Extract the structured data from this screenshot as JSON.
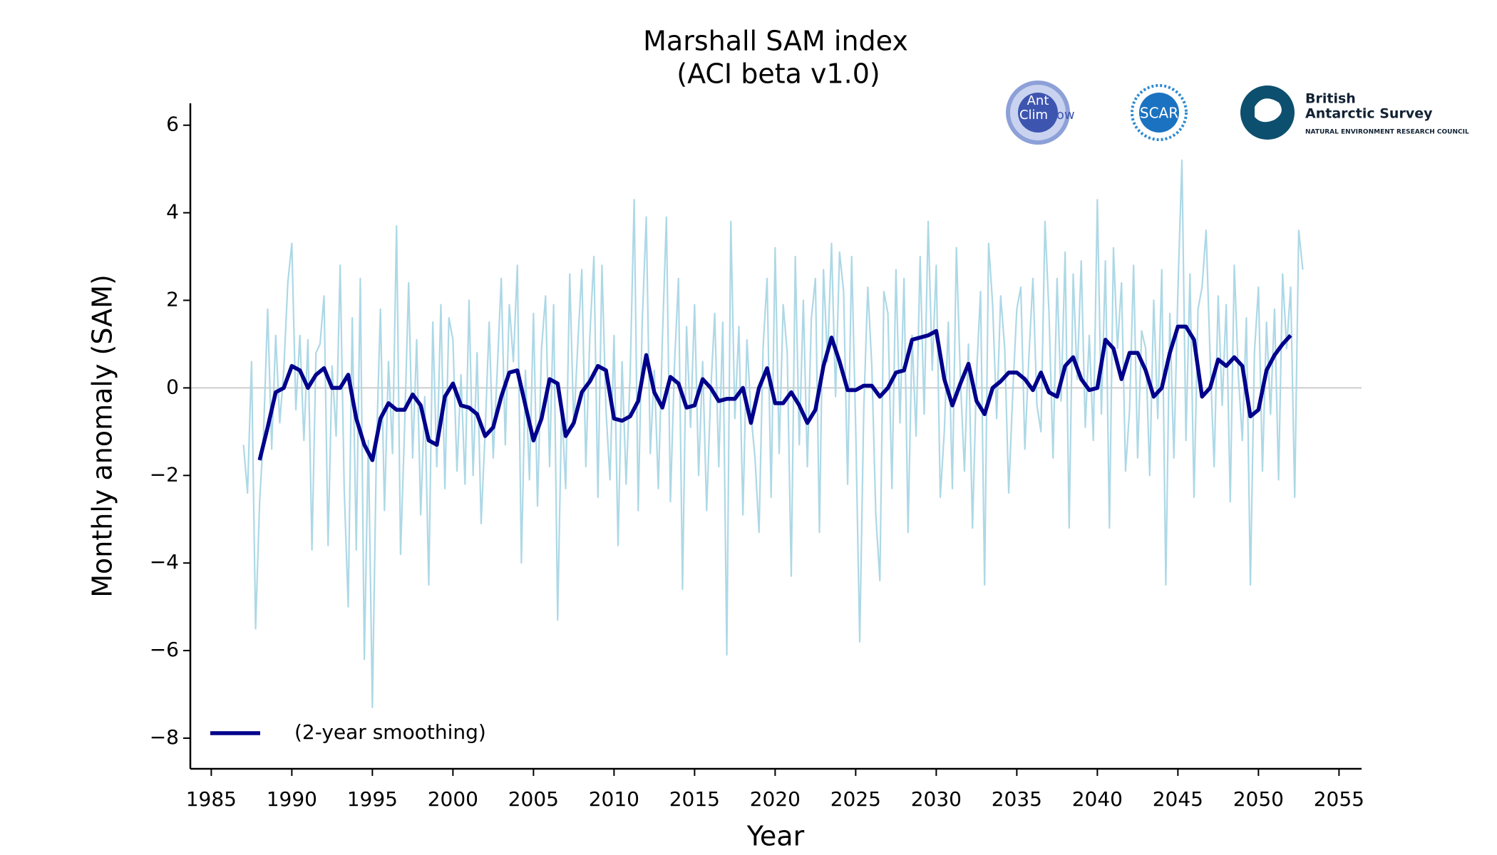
{
  "chart_data": {
    "type": "line",
    "title": "Marshall SAM index",
    "subtitle": "(ACI beta v1.0)",
    "x_label": "Year",
    "y_label": "Monthly anomaly (SAM)",
    "logos": [
      "Ant",
      "Clim",
      "Now",
      "SCAR",
      "British",
      "Antarctic Survey",
      "NATURAL ENVIRONMENT RESEARCH COUNCIL"
    ],
    "xlim": [
      1983.7,
      2056.4
    ],
    "ylim": [
      -8.7,
      6.5
    ],
    "xticks": [
      1985,
      1990,
      1995,
      2000,
      2005,
      2010,
      2015,
      2020,
      2025,
      2030,
      2035,
      2040,
      2045,
      2050,
      2055
    ],
    "yticks": [
      {
        "value": -8,
        "label": "−8"
      },
      {
        "value": -6,
        "label": "−6"
      },
      {
        "value": -4,
        "label": "−4"
      },
      {
        "value": -2,
        "label": "−2"
      },
      0,
      2,
      4,
      6
    ],
    "reference_line": 0,
    "legend": "lower left",
    "series": [
      {
        "color": "#add8e6",
        "x": [
          1987,
          1987.25,
          1987.5,
          1987.75,
          1988,
          1988.25,
          1988.5,
          1988.75,
          1989,
          1989.25,
          1989.5,
          1989.75,
          1990,
          1990.25,
          1990.5,
          1990.75,
          1991,
          1991.25,
          1991.5,
          1991.75,
          1992,
          1992.25,
          1992.5,
          1992.75,
          1993,
          1993.25,
          1993.5,
          1993.75,
          1994,
          1994.25,
          1994.5,
          1994.75,
          1995,
          1995.25,
          1995.5,
          1995.75,
          1996,
          1996.25,
          1996.5,
          1996.75,
          1997,
          1997.25,
          1997.5,
          1997.75,
          1998,
          1998.25,
          1998.5,
          1998.75,
          1999,
          1999.25,
          1999.5,
          1999.75,
          2000,
          2000.25,
          2000.5,
          2000.75,
          2001,
          2001.25,
          2001.5,
          2001.75,
          2002,
          2002.25,
          2002.5,
          2002.75,
          2003,
          2003.25,
          2003.5,
          2003.75,
          2004,
          2004.25,
          2004.5,
          2004.75,
          2005,
          2005.25,
          2005.5,
          2005.75,
          2006,
          2006.25,
          2006.5,
          2006.75,
          2007,
          2007.25,
          2007.5,
          2007.75,
          2008,
          2008.25,
          2008.5,
          2008.75,
          2009,
          2009.25,
          2009.5,
          2009.75,
          2010,
          2010.25,
          2010.5,
          2010.75,
          2011,
          2011.25,
          2011.5,
          2011.75,
          2012,
          2012.25,
          2012.5,
          2012.75,
          2013,
          2013.25,
          2013.5,
          2013.75,
          2014,
          2014.25,
          2014.5,
          2014.75,
          2015,
          2015.25,
          2015.5,
          2015.75,
          2016,
          2016.25,
          2016.5,
          2016.75,
          2017,
          2017.25,
          2017.5,
          2017.75,
          2018,
          2018.25,
          2018.5,
          2018.75,
          2019,
          2019.25,
          2019.5,
          2019.75,
          2020,
          2020.25,
          2020.5,
          2020.75,
          2021,
          2021.25,
          2021.5,
          2021.75,
          2022,
          2022.25,
          2022.5,
          2022.75,
          2023,
          2023.25,
          2023.5,
          2023.75,
          2024,
          2024.25,
          2024.5,
          2024.75,
          2025,
          2025.25,
          2025.5,
          2025.75,
          2026,
          2026.25,
          2026.5,
          2026.75,
          2027,
          2027.25,
          2027.5,
          2027.75,
          2028,
          2028.25,
          2028.5,
          2028.75,
          2029,
          2029.25,
          2029.5,
          2029.75,
          2030,
          2030.25,
          2030.5,
          2030.75,
          2031,
          2031.25,
          2031.5,
          2031.75,
          2032,
          2032.25,
          2032.5,
          2032.75,
          2033,
          2033.25,
          2033.5,
          2033.75,
          2034,
          2034.25,
          2034.5,
          2034.75,
          2035,
          2035.25,
          2035.5,
          2035.75,
          2036,
          2036.25,
          2036.5,
          2036.75,
          2037,
          2037.25,
          2037.5,
          2037.75,
          2038,
          2038.25,
          2038.5,
          2038.75,
          2039,
          2039.25,
          2039.5,
          2039.75,
          2040,
          2040.25,
          2040.5,
          2040.75,
          2041,
          2041.25,
          2041.5,
          2041.75,
          2042,
          2042.25,
          2042.5,
          2042.75,
          2043,
          2043.25,
          2043.5,
          2043.75,
          2044,
          2044.25,
          2044.5,
          2044.75,
          2045,
          2045.25,
          2045.5,
          2045.75,
          2046,
          2046.25,
          2046.5,
          2046.75,
          2047,
          2047.25,
          2047.5,
          2047.75,
          2048,
          2048.25,
          2048.5,
          2048.75,
          2049,
          2049.25,
          2049.5,
          2049.75,
          2050,
          2050.25,
          2050.5,
          2050.75,
          2051,
          2051.25,
          2051.5,
          2051.75,
          2052,
          2052.25,
          2052.5,
          2052.75
        ],
        "values": [
          -1.3,
          -2.4,
          0.6,
          -5.5,
          -2.6,
          -1.0,
          1.8,
          -1.4,
          1.2,
          -0.8,
          0.4,
          2.4,
          3.3,
          -0.5,
          1.2,
          -1.2,
          1.1,
          -3.7,
          0.8,
          1.0,
          2.1,
          -3.6,
          0.5,
          -1.1,
          2.8,
          -2.3,
          -5.0,
          1.6,
          -3.7,
          2.5,
          -6.2,
          -1.2,
          -7.3,
          -1.4,
          1.8,
          -2.8,
          0.6,
          -1.5,
          3.7,
          -3.8,
          -0.9,
          2.4,
          -1.6,
          1.1,
          -2.9,
          -0.2,
          -4.5,
          1.5,
          -1.8,
          1.9,
          -2.3,
          1.6,
          1.1,
          -1.9,
          0.3,
          -2.2,
          2.0,
          -2.0,
          0.8,
          -3.1,
          -1.0,
          1.5,
          -1.6,
          0.4,
          2.5,
          -1.3,
          1.9,
          0.6,
          2.8,
          -4.0,
          0.4,
          -2.1,
          1.7,
          -2.7,
          0.9,
          2.1,
          -1.8,
          1.9,
          -5.3,
          -0.4,
          -2.3,
          2.6,
          -0.9,
          1.0,
          2.7,
          -1.8,
          1.2,
          3.0,
          -2.5,
          2.8,
          -0.5,
          -2.1,
          1.2,
          -3.6,
          0.6,
          -2.2,
          0.3,
          4.3,
          -2.8,
          1.5,
          3.9,
          -1.5,
          0.4,
          -2.3,
          1.1,
          3.9,
          -2.6,
          0.5,
          2.5,
          -4.6,
          1.4,
          -0.9,
          1.9,
          -2.0,
          0.6,
          -2.8,
          -0.1,
          1.7,
          -1.8,
          1.5,
          -6.1,
          3.8,
          -0.7,
          1.4,
          -2.9,
          1.1,
          -0.6,
          -1.6,
          -3.3,
          0.9,
          2.5,
          -2.5,
          3.2,
          -1.5,
          1.9,
          0.8,
          -4.3,
          3.0,
          -1.3,
          2.0,
          -1.8,
          1.6,
          2.5,
          -3.3,
          2.7,
          0.6,
          3.3,
          -0.2,
          3.1,
          2.2,
          -2.2,
          3.0,
          -0.9,
          -5.8,
          -0.5,
          2.3,
          0.5,
          -2.9,
          -4.4,
          2.2,
          1.7,
          -2.3,
          2.7,
          -0.8,
          2.5,
          -3.3,
          1.2,
          -1.1,
          3.0,
          -0.6,
          3.8,
          0.4,
          2.8,
          -2.5,
          -1.0,
          1.5,
          -2.3,
          3.2,
          0.2,
          -1.9,
          1.0,
          -3.2,
          0.3,
          2.2,
          -4.5,
          3.3,
          1.9,
          -0.7,
          2.1,
          0.9,
          -2.4,
          -0.1,
          1.8,
          2.3,
          -1.4,
          0.7,
          2.5,
          -0.4,
          -1.0,
          3.8,
          1.7,
          -1.6,
          2.5,
          -0.3,
          3.1,
          -3.2,
          2.6,
          0.2,
          2.9,
          -0.9,
          1.2,
          -1.2,
          4.3,
          -0.6,
          2.9,
          -3.2,
          3.2,
          0.9,
          2.4,
          -1.9,
          -0.5,
          2.8,
          -1.6,
          1.3,
          0.9,
          -2.0,
          2.0,
          -0.7,
          2.7,
          -4.5,
          1.7,
          -1.6,
          2.2,
          5.2,
          -1.2,
          2.6,
          -2.5,
          1.8,
          2.3,
          3.6,
          0.7,
          -1.8,
          2.1,
          -0.4,
          1.9,
          -2.6,
          2.8,
          0.3,
          -1.2,
          1.6,
          -4.5,
          0.8,
          2.3,
          -1.9,
          1.5,
          -0.6,
          1.8,
          -2.1,
          2.6,
          0.9,
          2.3,
          -2.5,
          3.6,
          2.7
        ]
      },
      {
        "name": "(2-year smoothing)",
        "color": "#00008b",
        "x": [
          1988,
          1988.5,
          1989,
          1989.5,
          1990,
          1990.5,
          1991,
          1991.5,
          1992,
          1992.5,
          1993,
          1993.5,
          1994,
          1994.5,
          1995,
          1995.5,
          1996,
          1996.5,
          1997,
          1997.5,
          1998,
          1998.5,
          1999,
          1999.5,
          2000,
          2000.5,
          2001,
          2001.5,
          2002,
          2002.5,
          2003,
          2003.5,
          2004,
          2004.5,
          2005,
          2005.5,
          2006,
          2006.5,
          2007,
          2007.5,
          2008,
          2008.5,
          2009,
          2009.5,
          2010,
          2010.5,
          2011,
          2011.5,
          2012,
          2012.5,
          2013,
          2013.5,
          2014,
          2014.5,
          2015,
          2015.5,
          2016,
          2016.5,
          2017,
          2017.5,
          2018,
          2018.5,
          2019,
          2019.5,
          2020,
          2020.5,
          2021,
          2021.5,
          2022,
          2022.5,
          2023,
          2023.5,
          2024,
          2024.5,
          2025,
          2025.5,
          2026,
          2026.5,
          2027,
          2027.5,
          2028,
          2028.5,
          2029,
          2029.5,
          2030,
          2030.5,
          2031,
          2031.5,
          2032,
          2032.5,
          2033,
          2033.5,
          2034,
          2034.5,
          2035,
          2035.5,
          2036,
          2036.5,
          2037,
          2037.5,
          2038,
          2038.5,
          2039,
          2039.5,
          2040,
          2040.5,
          2041,
          2041.5,
          2042,
          2042.5,
          2043,
          2043.5,
          2044,
          2044.5,
          2045,
          2045.5,
          2046,
          2046.5,
          2047,
          2047.5,
          2048,
          2048.5,
          2049,
          2049.5,
          2050,
          2050.5,
          2051,
          2051.5,
          2052
        ],
        "values": [
          -1.65,
          -0.9,
          -0.1,
          0.0,
          0.5,
          0.4,
          0.0,
          0.3,
          0.45,
          0.0,
          0.0,
          0.3,
          -0.7,
          -1.3,
          -1.65,
          -0.7,
          -0.35,
          -0.5,
          -0.5,
          -0.15,
          -0.4,
          -1.2,
          -1.3,
          -0.2,
          0.1,
          -0.4,
          -0.45,
          -0.6,
          -1.1,
          -0.9,
          -0.2,
          0.35,
          0.4,
          -0.4,
          -1.2,
          -0.7,
          0.2,
          0.1,
          -1.1,
          -0.8,
          -0.1,
          0.15,
          0.5,
          0.4,
          -0.7,
          -0.75,
          -0.65,
          -0.3,
          0.75,
          -0.1,
          -0.45,
          0.25,
          0.1,
          -0.45,
          -0.4,
          0.2,
          0.0,
          -0.3,
          -0.25,
          -0.25,
          0.0,
          -0.8,
          0.0,
          0.45,
          -0.35,
          -0.35,
          -0.1,
          -0.4,
          -0.8,
          -0.5,
          0.5,
          1.15,
          0.6,
          -0.05,
          -0.05,
          0.05,
          0.05,
          -0.2,
          0.0,
          0.35,
          0.4,
          1.1,
          1.15,
          1.2,
          1.3,
          0.2,
          -0.4,
          0.1,
          0.55,
          -0.3,
          -0.6,
          0.0,
          0.15,
          0.35,
          0.35,
          0.2,
          -0.05,
          0.35,
          -0.1,
          -0.2,
          0.5,
          0.7,
          0.2,
          -0.05,
          0.0,
          1.1,
          0.9,
          0.2,
          0.8,
          0.8,
          0.4,
          -0.2,
          0.0,
          0.8,
          1.4,
          1.4,
          1.1,
          -0.2,
          0.0,
          0.65,
          0.5,
          0.7,
          0.5,
          -0.65,
          -0.5,
          0.4,
          0.75,
          1.0,
          1.2
        ]
      }
    ]
  }
}
